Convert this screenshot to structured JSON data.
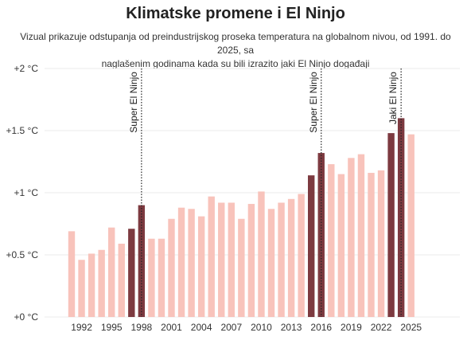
{
  "header": {
    "title": "Klimatske promene i El Ninjo",
    "subtitle_line1": "Vizual prikazuje odstupanja od preindustrijskog proseka temperatura na globalnom nivou, od 1991. do 2025, sa",
    "subtitle_line2": "naglašenim godinama kada su bili izrazito jaki El Ninjo događaji"
  },
  "chart_data": {
    "type": "bar",
    "title": "Klimatske promene i El Ninjo",
    "categories": [
      "1991",
      "1992",
      "1993",
      "1994",
      "1995",
      "1996",
      "1997",
      "1998",
      "1999",
      "2000",
      "2001",
      "2002",
      "2003",
      "2004",
      "2005",
      "2006",
      "2007",
      "2008",
      "2009",
      "2010",
      "2011",
      "2012",
      "2013",
      "2014",
      "2015",
      "2016",
      "2017",
      "2018",
      "2019",
      "2020",
      "2021",
      "2022",
      "2023",
      "2024",
      "2025"
    ],
    "values": [
      0.69,
      0.46,
      0.51,
      0.54,
      0.72,
      0.59,
      0.71,
      0.9,
      0.63,
      0.63,
      0.79,
      0.88,
      0.87,
      0.81,
      0.97,
      0.92,
      0.92,
      0.79,
      0.91,
      1.01,
      0.87,
      0.92,
      0.95,
      0.99,
      1.14,
      1.32,
      1.23,
      1.15,
      1.28,
      1.31,
      1.16,
      1.18,
      1.48,
      1.6,
      1.47
    ],
    "highlighted": [
      "1997",
      "1998",
      "2015",
      "2016",
      "2023",
      "2024"
    ],
    "x_tick_labels": [
      "1992",
      "1995",
      "1998",
      "2001",
      "2004",
      "2007",
      "2010",
      "2013",
      "2016",
      "2019",
      "2022",
      "2025"
    ],
    "y_ticks": [
      0,
      0.5,
      1,
      1.5,
      2
    ],
    "y_tick_labels": [
      "+0 °C",
      "+0.5 °C",
      "+1 °C",
      "+1.5 °C",
      "+2 °C"
    ],
    "ylim": [
      0,
      2
    ],
    "xlabel": "",
    "ylabel": "",
    "grid": true,
    "annotations": [
      {
        "year": "1998",
        "label": "Super El Ninjo"
      },
      {
        "year": "2016",
        "label": "Super El Ninjo"
      },
      {
        "year": "2024",
        "label": "Jaki El Ninjo"
      }
    ],
    "colors": {
      "normal": "#f8c3bb",
      "highlight": "#7d3a40",
      "grid": "#ebebeb",
      "annotation_line": "#222222"
    }
  }
}
